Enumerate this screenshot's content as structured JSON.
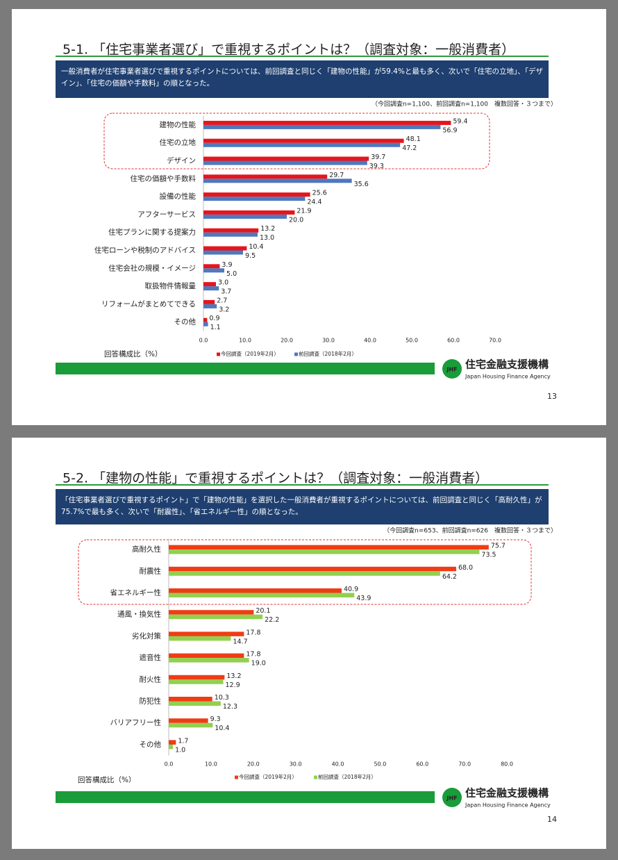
{
  "chart_data": [
    {
      "type": "bar",
      "orientation": "horizontal",
      "title": "5-1. 「住宅事業者選び」で重視するポイントは？（調査対象：一般消費者）",
      "summary": "一般消費者が住宅事業者選びで重視するポイントについては、前回調査と同じく「建物の性能」が59.4%と最も多く、次いで「住宅の立地」、「デザイン」、「住宅の価額や手数料」の順となった。",
      "note": "（今回調査n=1,100、前回調査n=1,100　複数回答・３つまで）",
      "xlabel": "回答構成比（%）",
      "categories": [
        "建物の性能",
        "住宅の立地",
        "デザイン",
        "住宅の価額や手数料",
        "設備の性能",
        "アフターサービス",
        "住宅プランに関する提案力",
        "住宅ローンや税制のアドバイス",
        "住宅会社の規模・イメージ",
        "取扱物件情報量",
        "リフォームがまとめてできる",
        "その他"
      ],
      "series": [
        {
          "name": "今回調査（2019年2月）",
          "color": "#e8141c",
          "values": [
            59.4,
            48.1,
            39.7,
            29.7,
            25.6,
            21.9,
            13.2,
            10.4,
            3.9,
            3.0,
            2.7,
            0.9
          ],
          "value_labels": [
            "59.4",
            "48.1",
            "39.7",
            "29.7",
            "25.6",
            "21.9",
            "13.2",
            "10.4",
            "3.9",
            "3.0",
            "2.7",
            "0.9"
          ]
        },
        {
          "name": "前回調査（2018年2月）",
          "color": "#4f78bd",
          "values": [
            56.9,
            47.2,
            39.3,
            35.6,
            24.4,
            20.0,
            13.0,
            9.5,
            5.0,
            3.7,
            3.2,
            1.1
          ],
          "value_labels": [
            "56.9",
            "47.2",
            "39.3",
            "35.6",
            "24.4",
            "20.0",
            "13.0",
            "9.5",
            "5.0",
            "3.7",
            "3.2",
            "1.1"
          ]
        }
      ],
      "xlim": [
        0,
        70
      ],
      "xticks": [
        {
          "value": 0,
          "label": "0.0"
        },
        {
          "value": 10,
          "label": "10.0"
        },
        {
          "value": 20,
          "label": "20.0"
        },
        {
          "value": 30,
          "label": "30.0"
        },
        {
          "value": 40,
          "label": "40.0"
        },
        {
          "value": 50,
          "label": "50.0"
        },
        {
          "value": 60,
          "label": "60.0"
        },
        {
          "value": 70,
          "label": "70.0"
        }
      ],
      "logo_mark": "JHF",
      "logo_name": "住宅金融支援機構",
      "logo_english": "Japan Housing Finance Agency",
      "page_number": "13"
    },
    {
      "type": "bar",
      "orientation": "horizontal",
      "title": "5-2. 「建物の性能」で重視するポイントは？（調査対象：一般消費者）",
      "summary": "「住宅事業者選びで重視するポイント」で「建物の性能」を選択した一般消費者が重視するポイントについては、前回調査と同じく「高耐久性」が75.7%で最も多く、次いで「耐震性」、「省エネルギー性」の順となった。",
      "note": "（今回調査n=653、前回調査n=626　複数回答・３つまで）",
      "xlabel": "回答構成比（%）",
      "categories": [
        "高耐久性",
        "耐震性",
        "省エネルギー性",
        "通風・換気性",
        "劣化対策",
        "遮音性",
        "耐火性",
        "防犯性",
        "バリアフリー性",
        "その他"
      ],
      "series": [
        {
          "name": "今回調査（2019年2月）",
          "color": "#f03c14",
          "values": [
            75.7,
            68.0,
            40.9,
            20.1,
            17.8,
            17.8,
            13.2,
            10.3,
            9.3,
            1.7
          ],
          "value_labels": [
            "75.7",
            "68.0",
            "40.9",
            "20.1",
            "17.8",
            "17.8",
            "13.2",
            "10.3",
            "9.3",
            "1.7"
          ]
        },
        {
          "name": "前回調査（2018年2月）",
          "color": "#92d050",
          "values": [
            73.5,
            64.2,
            43.9,
            22.2,
            14.7,
            19.0,
            12.9,
            12.3,
            10.4,
            1.0
          ],
          "value_labels": [
            "73.5",
            "64.2",
            "43.9",
            "22.2",
            "14.7",
            "19.0",
            "12.9",
            "12.3",
            "10.4",
            "1.0"
          ]
        }
      ],
      "xlim": [
        0,
        80
      ],
      "xticks": [
        {
          "value": 0,
          "label": "0.0"
        },
        {
          "value": 10,
          "label": "10.0"
        },
        {
          "value": 20,
          "label": "20.0"
        },
        {
          "value": 30,
          "label": "30.0"
        },
        {
          "value": 40,
          "label": "40.0"
        },
        {
          "value": 50,
          "label": "50.0"
        },
        {
          "value": 60,
          "label": "60.0"
        },
        {
          "value": 70,
          "label": "70.0"
        },
        {
          "value": 80,
          "label": "80.0"
        }
      ],
      "logo_mark": "JHF",
      "logo_name": "住宅金融支援機構",
      "logo_english": "Japan Housing Finance Agency",
      "page_number": "14"
    }
  ]
}
